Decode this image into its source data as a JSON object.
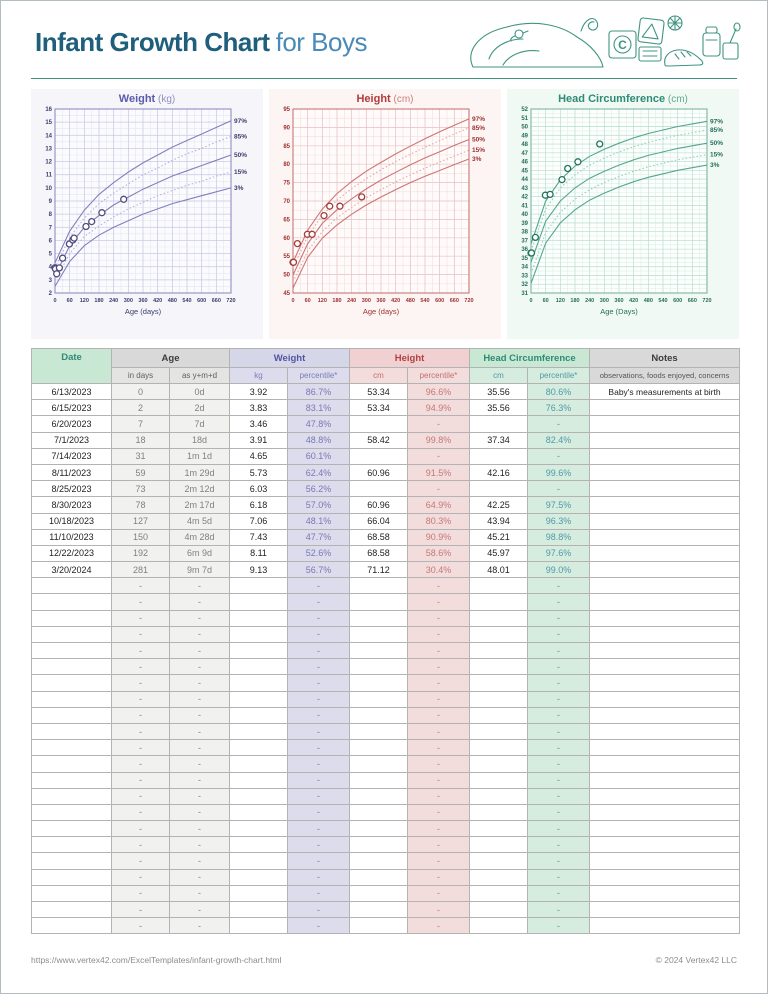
{
  "header": {
    "title": "Infant Growth Chart",
    "subtitle": "for Boys"
  },
  "footer": {
    "url": "https://www.vertex42.com/ExcelTemplates/infant-growth-chart.html",
    "copyright": "© 2024 Vertex42 LLC"
  },
  "colors": {
    "title_dark": "#1f5f7c",
    "title_light": "#4a8ab8",
    "divider_teal": "#3f9480",
    "weight_accent": "#5b5bab",
    "height_accent": "#b23b3b",
    "head_accent": "#2e8b74",
    "date_header_bg": "#c8e8d4",
    "age_header_bg": "#d9d9d9",
    "weight_pct_bg": "#dcdcec",
    "height_pct_bg": "#f3dcdc",
    "head_pct_bg": "#d6ecdf"
  },
  "chart_data": [
    {
      "type": "scatter",
      "name": "weight",
      "title": "Weight",
      "unit": "(kg)",
      "xlabel": "Age (days)",
      "xlim": [
        0,
        720
      ],
      "xtick_step": 60,
      "xminor_step": 30,
      "ylim": [
        2,
        16
      ],
      "ytick_step": 1,
      "yminor_step": 0.5,
      "legend_position": "right-edge-labels",
      "grid": true,
      "curve_x": [
        0,
        60,
        120,
        180,
        240,
        300,
        360,
        420,
        480,
        540,
        600,
        660,
        720
      ],
      "curves": [
        {
          "label": "97%",
          "style": "solid",
          "y": [
            4.3,
            6.7,
            8.3,
            9.5,
            10.4,
            11.2,
            11.9,
            12.5,
            13.1,
            13.6,
            14.1,
            14.6,
            15.1
          ]
        },
        {
          "label": "85%",
          "style": "dotted",
          "y": [
            3.9,
            6.2,
            7.7,
            8.8,
            9.6,
            10.3,
            11.0,
            11.5,
            12.1,
            12.6,
            13.0,
            13.5,
            13.9
          ]
        },
        {
          "label": "50%",
          "style": "solid",
          "y": [
            3.3,
            5.6,
            7.0,
            7.9,
            8.7,
            9.3,
            9.9,
            10.4,
            10.9,
            11.3,
            11.7,
            12.1,
            12.5
          ]
        },
        {
          "label": "15%",
          "style": "dotted",
          "y": [
            2.9,
            5.0,
            6.3,
            7.1,
            7.8,
            8.4,
            8.9,
            9.4,
            9.8,
            10.2,
            10.5,
            10.9,
            11.2
          ]
        },
        {
          "label": "3%",
          "style": "solid",
          "y": [
            2.5,
            4.4,
            5.6,
            6.4,
            7.0,
            7.5,
            8.0,
            8.4,
            8.8,
            9.1,
            9.4,
            9.7,
            10.0
          ]
        }
      ],
      "points": {
        "x": [
          0,
          2,
          7,
          18,
          31,
          59,
          73,
          78,
          127,
          150,
          192,
          281
        ],
        "y": [
          3.92,
          3.83,
          3.46,
          3.91,
          4.65,
          5.73,
          6.03,
          6.18,
          7.06,
          7.43,
          8.11,
          9.13
        ]
      },
      "colors": {
        "panel": "#f5f5fa",
        "plot": "#fbfbfe",
        "grid": "#c9c9e6",
        "grid_minor": "#e5e5f4",
        "axis": "#8686bd",
        "tick": "#3c3c6e",
        "title": "#5b5bab",
        "unit": "#9090c4",
        "solid": "#8181bd",
        "dotted": "#b3b3d9",
        "point": "#4d4d7d",
        "label": "#3c3c6e"
      }
    },
    {
      "type": "scatter",
      "name": "height",
      "title": "Height",
      "unit": "(cm)",
      "xlabel": "Age (days)",
      "xlim": [
        0,
        720
      ],
      "xtick_step": 60,
      "xminor_step": 30,
      "ylim": [
        45,
        95
      ],
      "ytick_step": 5,
      "yminor_step": 2.5,
      "legend_position": "right-edge-labels",
      "grid": true,
      "curve_x": [
        0,
        60,
        120,
        180,
        240,
        300,
        360,
        420,
        480,
        540,
        600,
        660,
        720
      ],
      "curves": [
        {
          "label": "97%",
          "style": "solid",
          "y": [
            53.4,
            62.1,
            67.8,
            72.0,
            75.3,
            78.1,
            80.5,
            82.8,
            84.9,
            86.9,
            88.8,
            90.6,
            92.3
          ]
        },
        {
          "label": "85%",
          "style": "dotted",
          "y": [
            51.8,
            60.5,
            66.1,
            70.2,
            73.4,
            76.1,
            78.5,
            80.7,
            82.7,
            84.6,
            86.4,
            88.2,
            89.9
          ]
        },
        {
          "label": "50%",
          "style": "solid",
          "y": [
            49.9,
            58.4,
            63.9,
            67.6,
            70.6,
            73.3,
            75.7,
            77.8,
            79.8,
            81.7,
            83.4,
            85.1,
            86.7
          ]
        },
        {
          "label": "15%",
          "style": "dotted",
          "y": [
            48.0,
            56.4,
            61.7,
            65.4,
            68.3,
            70.9,
            73.1,
            75.2,
            77.1,
            78.9,
            80.6,
            82.2,
            83.8
          ]
        },
        {
          "label": "3%",
          "style": "solid",
          "y": [
            46.3,
            54.7,
            59.9,
            63.5,
            66.4,
            68.9,
            71.1,
            73.1,
            75.0,
            76.7,
            78.3,
            79.9,
            81.4
          ]
        }
      ],
      "points": {
        "x": [
          0,
          2,
          18,
          59,
          78,
          127,
          150,
          192,
          281
        ],
        "y": [
          53.34,
          53.34,
          58.42,
          60.96,
          60.96,
          66.04,
          68.58,
          68.58,
          71.12
        ]
      },
      "colors": {
        "panel": "#fdf5f3",
        "plot": "#fffbfa",
        "grid": "#e8c4c4",
        "grid_minor": "#f4dede",
        "axis": "#c46a6a",
        "tick": "#9e3030",
        "title": "#b23b3b",
        "unit": "#cd7f7f",
        "solid": "#cd7575",
        "dotted": "#e0a8a8",
        "point": "#9e3d3d",
        "label": "#9e3030"
      }
    },
    {
      "type": "scatter",
      "name": "head_circumference",
      "title": "Head Circumference",
      "unit": "(cm)",
      "xlabel": "Age (Days)",
      "xlim": [
        0,
        720
      ],
      "xtick_step": 60,
      "xminor_step": 30,
      "ylim": [
        31,
        52
      ],
      "ytick_step": 1,
      "yminor_step": 0.5,
      "legend_position": "right-edge-labels",
      "grid": true,
      "curve_x": [
        0,
        60,
        120,
        180,
        240,
        300,
        360,
        420,
        480,
        540,
        600,
        660,
        720
      ],
      "curves": [
        {
          "label": "97%",
          "style": "solid",
          "y": [
            36.6,
            41.5,
            43.9,
            45.5,
            46.6,
            47.4,
            48.1,
            48.7,
            49.2,
            49.6,
            50.0,
            50.3,
            50.6
          ]
        },
        {
          "label": "85%",
          "style": "dotted",
          "y": [
            35.8,
            40.6,
            43.0,
            44.5,
            45.6,
            46.4,
            47.1,
            47.7,
            48.2,
            48.6,
            49.0,
            49.3,
            49.6
          ]
        },
        {
          "label": "50%",
          "style": "solid",
          "y": [
            34.5,
            39.2,
            41.5,
            43.0,
            44.1,
            44.9,
            45.6,
            46.2,
            46.7,
            47.1,
            47.5,
            47.8,
            48.1
          ]
        },
        {
          "label": "15%",
          "style": "dotted",
          "y": [
            33.2,
            37.9,
            40.2,
            41.7,
            42.8,
            43.6,
            44.3,
            44.9,
            45.4,
            45.8,
            46.2,
            46.5,
            46.8
          ]
        },
        {
          "label": "3%",
          "style": "solid",
          "y": [
            32.1,
            36.7,
            39.0,
            40.5,
            41.6,
            42.4,
            43.1,
            43.7,
            44.2,
            44.6,
            45.0,
            45.3,
            45.6
          ]
        }
      ],
      "points": {
        "x": [
          0,
          2,
          18,
          59,
          78,
          127,
          150,
          192,
          281
        ],
        "y": [
          35.56,
          35.56,
          37.34,
          42.16,
          42.25,
          43.94,
          45.21,
          45.97,
          48.01
        ]
      },
      "colors": {
        "panel": "#f1f9f4",
        "plot": "#fcfffd",
        "grid": "#bcdfd2",
        "grid_minor": "#dcefe6",
        "axis": "#6fae9a",
        "tick": "#256e5b",
        "title": "#2e8b74",
        "unit": "#63a892",
        "solid": "#55a68e",
        "dotted": "#98ccba",
        "point": "#22725e",
        "label": "#256e5b"
      }
    }
  ],
  "table": {
    "columns": {
      "date": "Date",
      "age": "Age",
      "in_days": "in days",
      "as_ymd": "as y+m+d",
      "weight": "Weight",
      "kg": "kg",
      "percentile": "percentile*",
      "height": "Height",
      "cm": "cm",
      "head": "Head Circumference",
      "notes": "Notes",
      "notes_sub": "observations, foods enjoyed, concerns"
    },
    "rows": [
      {
        "date": "6/13/2023",
        "days": "0",
        "ymd": "0d",
        "kg": "3.92",
        "kg_pct": "86.7%",
        "cm": "53.34",
        "cm_pct": "96.6%",
        "hc": "35.56",
        "hc_pct": "80.6%",
        "notes": "Baby's measurements at birth"
      },
      {
        "date": "6/15/2023",
        "days": "2",
        "ymd": "2d",
        "kg": "3.83",
        "kg_pct": "83.1%",
        "cm": "53.34",
        "cm_pct": "94.9%",
        "hc": "35.56",
        "hc_pct": "76.3%",
        "notes": ""
      },
      {
        "date": "6/20/2023",
        "days": "7",
        "ymd": "7d",
        "kg": "3.46",
        "kg_pct": "47.8%",
        "cm": "",
        "cm_pct": "-",
        "hc": "",
        "hc_pct": "-",
        "notes": ""
      },
      {
        "date": "7/1/2023",
        "days": "18",
        "ymd": "18d",
        "kg": "3.91",
        "kg_pct": "48.8%",
        "cm": "58.42",
        "cm_pct": "99.8%",
        "hc": "37.34",
        "hc_pct": "82.4%",
        "notes": ""
      },
      {
        "date": "7/14/2023",
        "days": "31",
        "ymd": "1m 1d",
        "kg": "4.65",
        "kg_pct": "60.1%",
        "cm": "",
        "cm_pct": "-",
        "hc": "",
        "hc_pct": "-",
        "notes": ""
      },
      {
        "date": "8/11/2023",
        "days": "59",
        "ymd": "1m 29d",
        "kg": "5.73",
        "kg_pct": "62.4%",
        "cm": "60.96",
        "cm_pct": "91.5%",
        "hc": "42.16",
        "hc_pct": "99.6%",
        "notes": ""
      },
      {
        "date": "8/25/2023",
        "days": "73",
        "ymd": "2m 12d",
        "kg": "6.03",
        "kg_pct": "56.2%",
        "cm": "",
        "cm_pct": "-",
        "hc": "",
        "hc_pct": "-",
        "notes": ""
      },
      {
        "date": "8/30/2023",
        "days": "78",
        "ymd": "2m 17d",
        "kg": "6.18",
        "kg_pct": "57.0%",
        "cm": "60.96",
        "cm_pct": "64.9%",
        "hc": "42.25",
        "hc_pct": "97.5%",
        "notes": ""
      },
      {
        "date": "10/18/2023",
        "days": "127",
        "ymd": "4m 5d",
        "kg": "7.06",
        "kg_pct": "48.1%",
        "cm": "66.04",
        "cm_pct": "80.3%",
        "hc": "43.94",
        "hc_pct": "96.3%",
        "notes": ""
      },
      {
        "date": "11/10/2023",
        "days": "150",
        "ymd": "4m 28d",
        "kg": "7.43",
        "kg_pct": "47.7%",
        "cm": "68.58",
        "cm_pct": "90.9%",
        "hc": "45.21",
        "hc_pct": "98.8%",
        "notes": ""
      },
      {
        "date": "12/22/2023",
        "days": "192",
        "ymd": "6m 9d",
        "kg": "8.11",
        "kg_pct": "52.6%",
        "cm": "68.58",
        "cm_pct": "58.6%",
        "hc": "45.97",
        "hc_pct": "97.6%",
        "notes": ""
      },
      {
        "date": "3/20/2024",
        "days": "281",
        "ymd": "9m 7d",
        "kg": "9.13",
        "kg_pct": "56.7%",
        "cm": "71.12",
        "cm_pct": "30.4%",
        "hc": "48.01",
        "hc_pct": "99.0%",
        "notes": ""
      }
    ],
    "empty_row_count": 22,
    "empty_row": {
      "date": "",
      "days": "-",
      "ymd": "-",
      "kg": "",
      "kg_pct": "-",
      "cm": "",
      "cm_pct": "-",
      "hc": "",
      "hc_pct": "-",
      "notes": ""
    }
  }
}
